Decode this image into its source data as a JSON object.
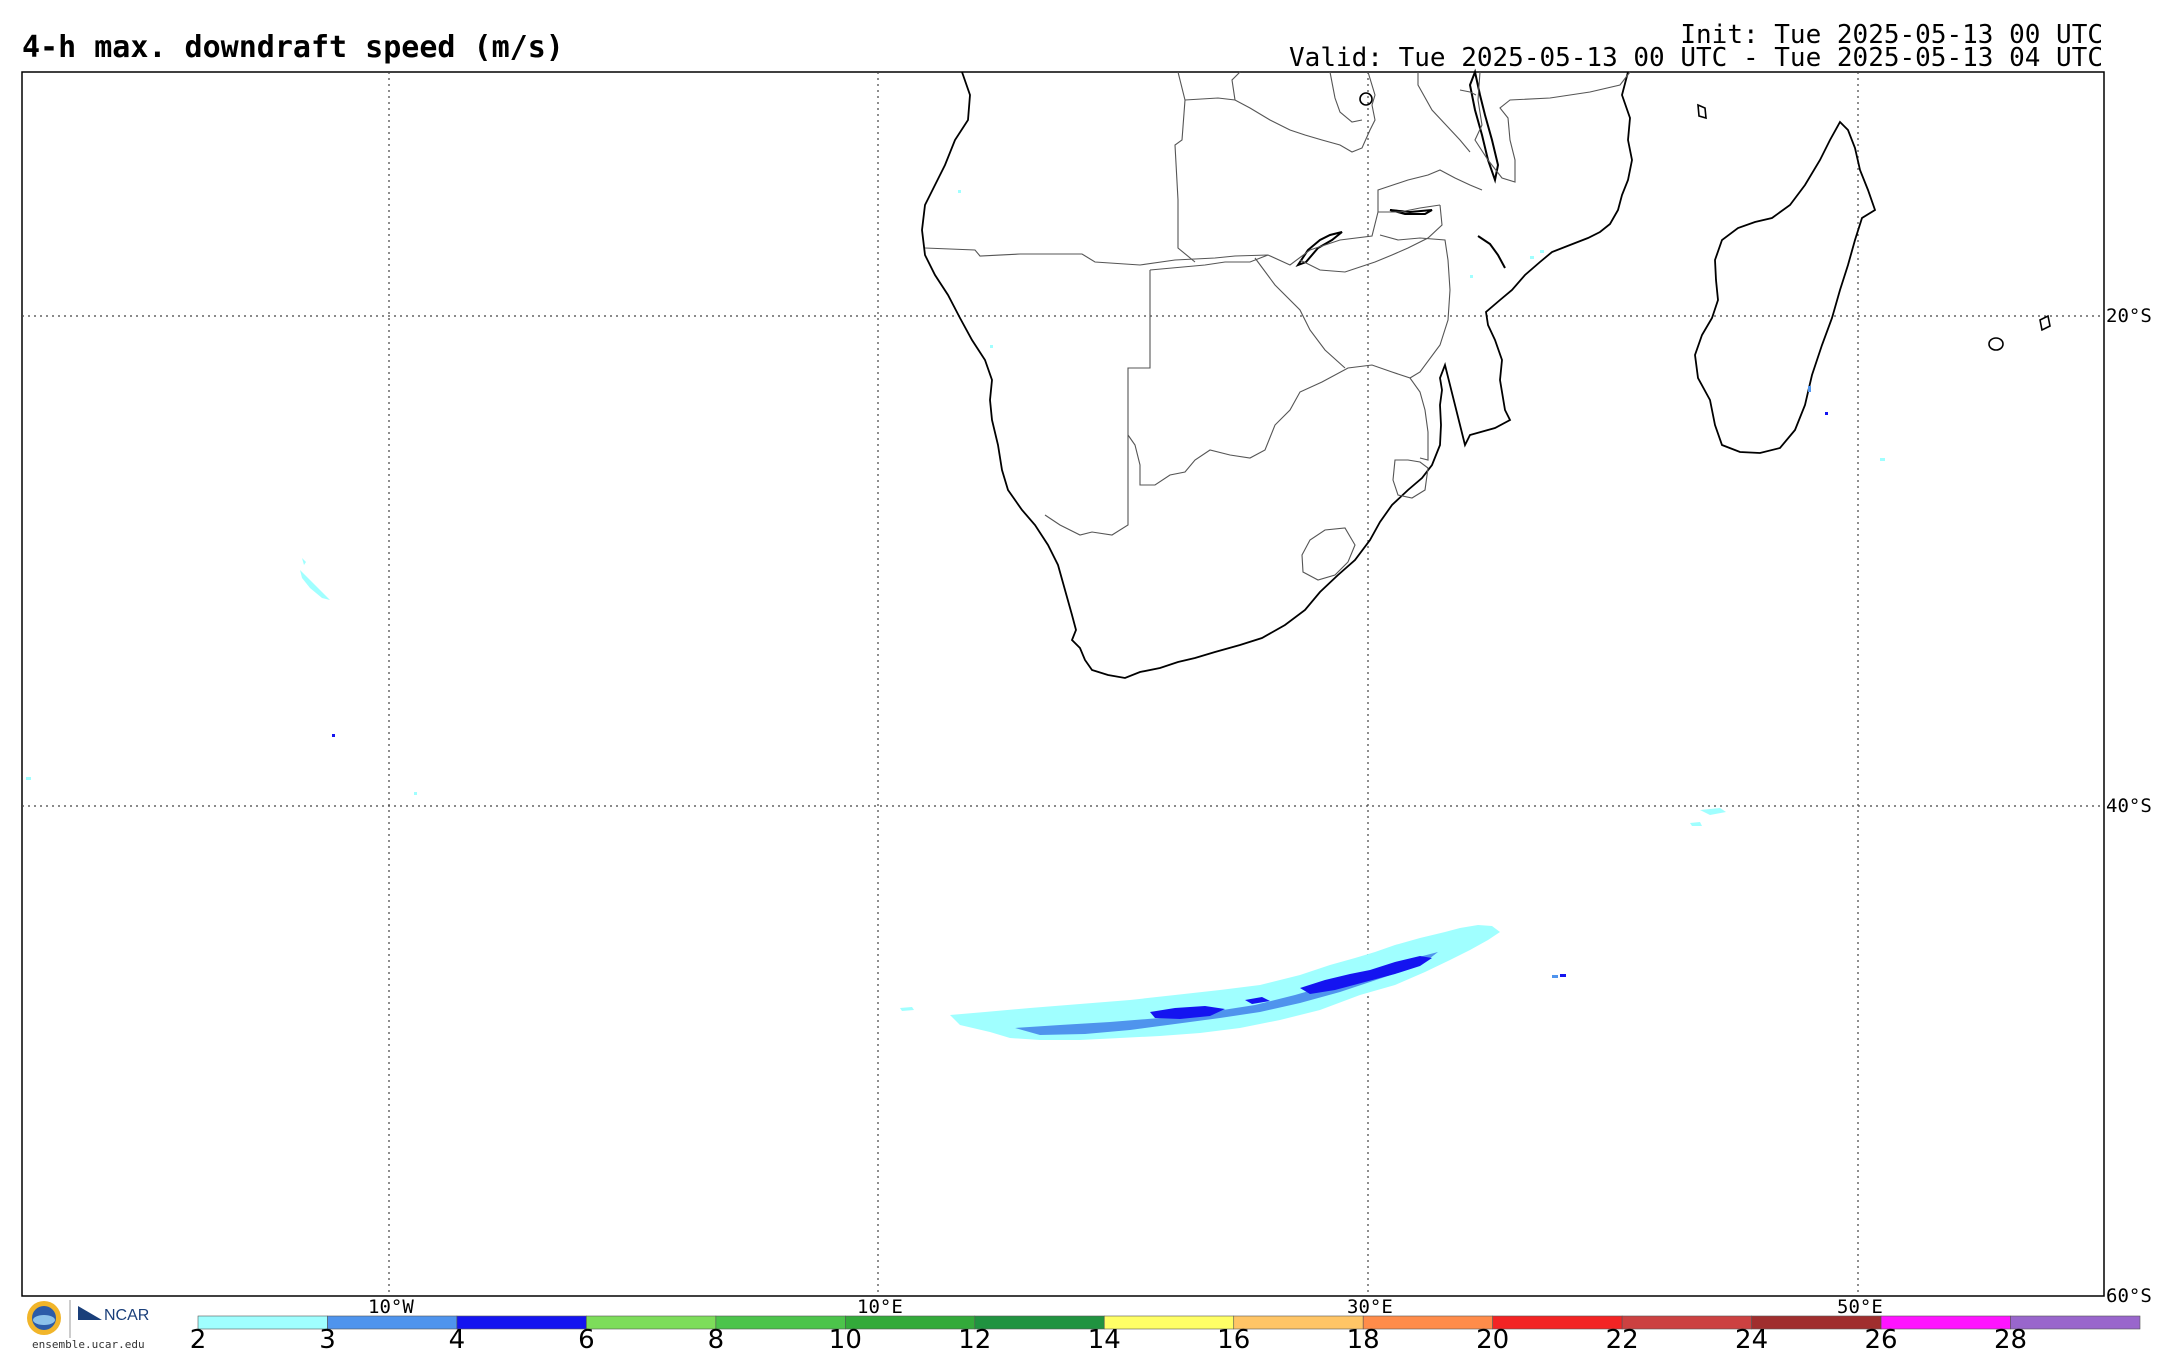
{
  "header": {
    "title": "4-h max. downdraft speed (m/s)",
    "init": "Init: Tue 2025-05-13 00 UTC",
    "valid": "Valid: Tue 2025-05-13 00 UTC - Tue 2025-05-13 04 UTC"
  },
  "map": {
    "lon_labels": [
      "10°W",
      "10°E",
      "30°E",
      "50°E"
    ],
    "lat_labels": [
      "20°S",
      "40°S",
      "60°S"
    ]
  },
  "colorbar": {
    "ticks": [
      "2",
      "3",
      "4",
      "6",
      "8",
      "10",
      "12",
      "14",
      "16",
      "18",
      "20",
      "22",
      "24",
      "26",
      "28"
    ],
    "colors": [
      "#a0ffff",
      "#4f94ed",
      "#1414f0",
      "#7ddd5a",
      "#4cc44b",
      "#33aa3a",
      "#209340",
      "#ffff66",
      "#ffc566",
      "#ff8c4a",
      "#f32424",
      "#cc4141",
      "#a02e2e",
      "#ff14ff",
      "#9966cc"
    ]
  },
  "branding": {
    "org_logo": "NCAR",
    "site": "ensemble.ucar.edu"
  }
}
